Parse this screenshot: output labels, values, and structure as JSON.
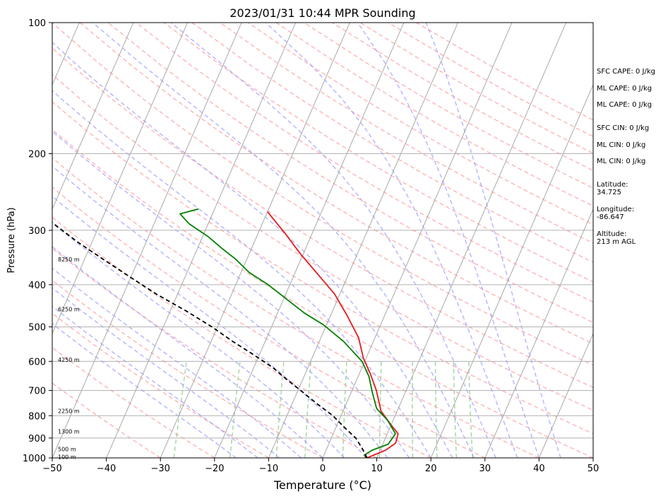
{
  "chart_data": {
    "type": "skew-t log-p",
    "title": "2023/01/31 10:44 MPR Sounding",
    "xlabel": "Temperature (°C)",
    "ylabel": "Pressure (hPa)",
    "xlim": [
      -50,
      50
    ],
    "ylim": [
      1000,
      100
    ],
    "y_scale": "log",
    "grid": true,
    "x_ticks": [
      -50,
      -40,
      -30,
      -20,
      -10,
      0,
      10,
      20,
      30,
      40,
      50
    ],
    "x_tick_labels": [
      "−50",
      "−40",
      "−30",
      "−20",
      "−10",
      "0",
      "10",
      "20",
      "30",
      "40",
      "50"
    ],
    "y_ticks": [
      1000,
      900,
      800,
      700,
      600,
      500,
      400,
      300,
      200,
      100
    ],
    "y_tick_labels": [
      "1000",
      "900",
      "800",
      "700",
      "600",
      "500",
      "400",
      "300",
      "200",
      "100"
    ],
    "series": [
      {
        "key": "temperature",
        "color": "#e31a1c",
        "points": [
          [
            8.2,
            1000
          ],
          [
            11,
            960
          ],
          [
            12.3,
            925
          ],
          [
            12,
            880
          ],
          [
            10,
            840
          ],
          [
            7,
            780
          ],
          [
            4.5,
            700
          ],
          [
            2,
            640
          ],
          [
            -0.5,
            590
          ],
          [
            -3,
            530
          ],
          [
            -7,
            470
          ],
          [
            -11,
            420
          ],
          [
            -15.5,
            380
          ],
          [
            -20.5,
            340
          ],
          [
            -25,
            305
          ],
          [
            -30,
            272
          ]
        ]
      },
      {
        "key": "dewpoint",
        "color": "#008000",
        "points": [
          [
            8,
            1000
          ],
          [
            7.5,
            985
          ],
          [
            8.5,
            960
          ],
          [
            11,
            930
          ],
          [
            11.5,
            880
          ],
          [
            9,
            820
          ],
          [
            6,
            770
          ],
          [
            4,
            710
          ],
          [
            2,
            650
          ],
          [
            -0.5,
            600
          ],
          [
            -5.5,
            540
          ],
          [
            -10.5,
            495
          ],
          [
            -15,
            465
          ],
          [
            -19,
            435
          ],
          [
            -24,
            400
          ],
          [
            -28.5,
            375
          ],
          [
            -32,
            350
          ],
          [
            -35.5,
            330
          ],
          [
            -39,
            310
          ],
          [
            -43.5,
            290
          ],
          [
            -46,
            275
          ],
          [
            -43,
            268
          ]
        ]
      },
      {
        "key": "parcel",
        "color": "#000000",
        "dashed": true,
        "points": [
          [
            8.2,
            1000
          ],
          [
            6.5,
            950
          ],
          [
            4.5,
            900
          ],
          [
            1.5,
            850
          ],
          [
            -1.5,
            800
          ],
          [
            -5.5,
            750
          ],
          [
            -9.5,
            700
          ],
          [
            -13,
            660
          ],
          [
            -16.5,
            620
          ],
          [
            -21,
            580
          ],
          [
            -26,
            540
          ],
          [
            -31,
            500
          ],
          [
            -37,
            460
          ],
          [
            -44,
            420
          ],
          [
            -50,
            385
          ],
          [
            -56.5,
            350
          ],
          [
            -62.5,
            320
          ],
          [
            -67.5,
            295
          ],
          [
            -72,
            273
          ]
        ]
      }
    ],
    "height_labels": [
      {
        "text": "8250 m",
        "p": 350
      },
      {
        "text": "6250 m",
        "p": 455
      },
      {
        "text": "4250 m",
        "p": 595
      },
      {
        "text": "2250 m",
        "p": 780
      },
      {
        "text": "1300 m",
        "p": 870
      },
      {
        "text": "500 m",
        "p": 955
      },
      {
        "text": "100 m",
        "p": 995
      }
    ]
  },
  "annotations": [
    {
      "key": "sfc_cape",
      "text": "SFC CAPE: 0 J/kg"
    },
    {
      "key": "ml_cape_1",
      "text": "ML CAPE: 0 J/kg"
    },
    {
      "key": "ml_cape_2",
      "text": "ML CAPE: 0 J/kg"
    },
    {
      "key": "sfc_cin",
      "text": "SFC CIN: 0 J/kg"
    },
    {
      "key": "ml_cin_1",
      "text": "ML CIN: 0 J/kg"
    },
    {
      "key": "ml_cin_2",
      "text": "ML CIN: 0 J/kg"
    },
    {
      "key": "latitude",
      "lines": [
        "Latitude:",
        "34.725"
      ]
    },
    {
      "key": "longitude",
      "lines": [
        "Longitude:",
        "-86.647"
      ]
    },
    {
      "key": "altitude",
      "lines": [
        "Altitude:",
        "213 m AGL"
      ]
    }
  ],
  "colors": {
    "isotherm": "#a0a0a0",
    "dry_adiabat": "#ff9999",
    "moist_adiabat": "#9999ff",
    "mixing_ratio": "#88cc88"
  }
}
